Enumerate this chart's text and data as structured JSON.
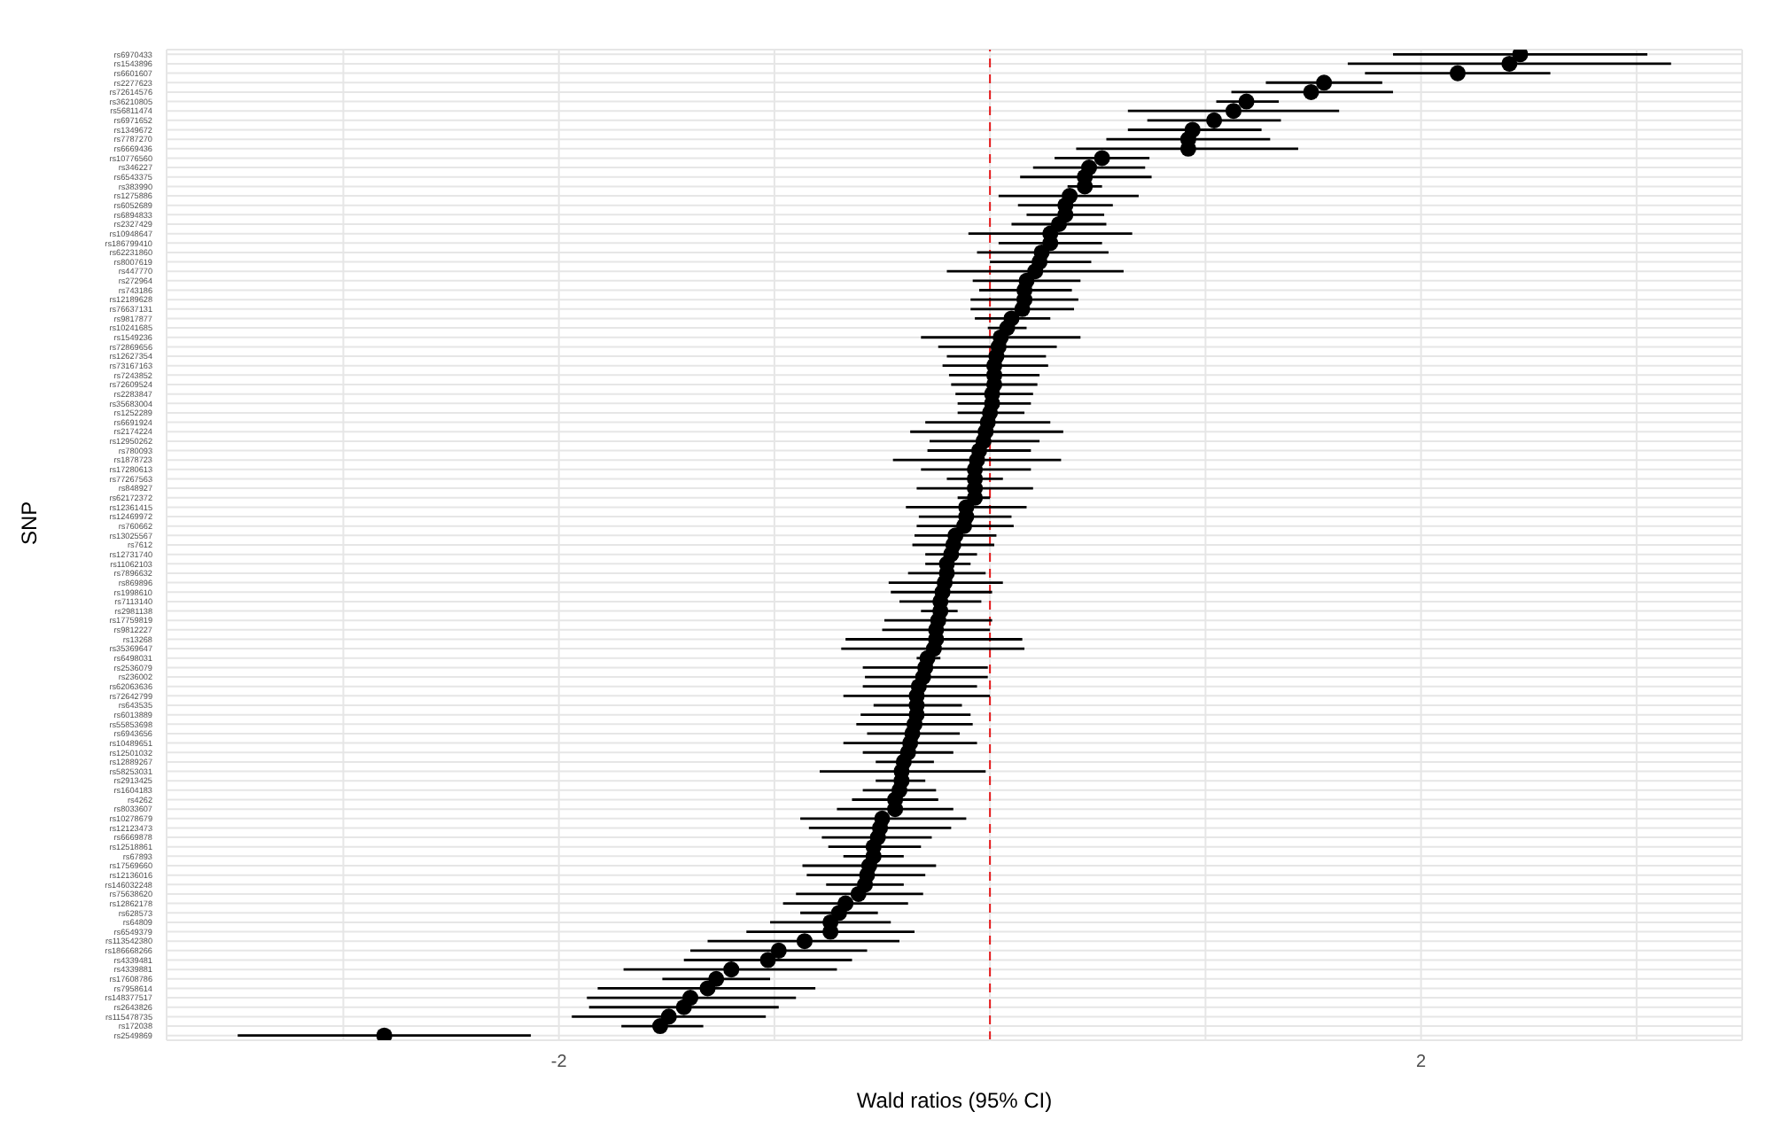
{
  "chart_data": {
    "type": "scatter",
    "orientation": "horizontal",
    "xlabel": "Wald ratios (95% CI)",
    "ylabel": "SNP",
    "grid": true,
    "marker": "circle",
    "legend": false,
    "categories": [
      "rs6970433",
      "rs1543896",
      "rs6601607",
      "rs2277623",
      "rs72614576",
      "rs36210805",
      "rs56811474",
      "rs6971652",
      "rs1349672",
      "rs7787270",
      "rs6669436",
      "rs10776560",
      "rs346227",
      "rs6543375",
      "rs383990",
      "rs1275886",
      "rs6052689",
      "rs6894833",
      "rs2327429",
      "rs10948647",
      "rs186799410",
      "rs62231860",
      "rs8007619",
      "rs447770",
      "rs272964",
      "rs743186",
      "rs12189628",
      "rs76637131",
      "rs9817877",
      "rs10241685",
      "rs1549236",
      "rs72869656",
      "rs12627354",
      "rs73167163",
      "rs7243852",
      "rs72609524",
      "rs2283847",
      "rs35683004",
      "rs1252289",
      "rs6691924",
      "rs2174224",
      "rs12950262",
      "rs780093",
      "rs1878723",
      "rs17280613",
      "rs77267563",
      "rs848927",
      "rs62172372",
      "rs12361415",
      "rs12469972",
      "rs760662",
      "rs13025567",
      "rs7612",
      "rs12731740",
      "rs11062103",
      "rs7896632",
      "rs869896",
      "rs1998610",
      "rs7113140",
      "rs2981138",
      "rs17759819",
      "rs9812227",
      "rs13268",
      "rs35369647",
      "rs6498031",
      "rs2536079",
      "rs236002",
      "rs62063636",
      "rs72642799",
      "rs643535",
      "rs6013889",
      "rs55853698",
      "rs6943656",
      "rs10489651",
      "rs12501032",
      "rs12889267",
      "rs58253031",
      "rs2913425",
      "rs1604183",
      "rs4262",
      "rs8033607",
      "rs10278679",
      "rs12123473",
      "rs6669878",
      "rs12518861",
      "rs67893",
      "rs17569660",
      "rs12136016",
      "rs146032248",
      "rs75638620",
      "rs12862178",
      "rs628573",
      "rs64809",
      "rs6549379",
      "rs113542380",
      "rs186668266",
      "rs4339481",
      "rs4339881",
      "rs17608786",
      "rs7958614",
      "rs148377517",
      "rs2643826",
      "rs115478735",
      "rs172038",
      "rs2549869"
    ],
    "series": [
      {
        "color": "#000000",
        "values": [
          2.46,
          2.41,
          2.17,
          1.55,
          1.49,
          1.19,
          1.13,
          1.04,
          0.94,
          0.92,
          0.92,
          0.52,
          0.46,
          0.44,
          0.44,
          0.37,
          0.35,
          0.35,
          0.32,
          0.28,
          0.28,
          0.24,
          0.23,
          0.21,
          0.17,
          0.16,
          0.16,
          0.15,
          0.1,
          0.08,
          0.05,
          0.04,
          0.03,
          0.02,
          0.02,
          0.02,
          0.01,
          0.01,
          0.0,
          -0.01,
          -0.02,
          -0.03,
          -0.05,
          -0.06,
          -0.07,
          -0.07,
          -0.07,
          -0.07,
          -0.11,
          -0.11,
          -0.12,
          -0.16,
          -0.17,
          -0.18,
          -0.2,
          -0.2,
          -0.21,
          -0.22,
          -0.23,
          -0.23,
          -0.24,
          -0.25,
          -0.25,
          -0.26,
          -0.29,
          -0.3,
          -0.31,
          -0.33,
          -0.34,
          -0.34,
          -0.34,
          -0.35,
          -0.36,
          -0.37,
          -0.38,
          -0.4,
          -0.41,
          -0.41,
          -0.42,
          -0.44,
          -0.44,
          -0.5,
          -0.51,
          -0.52,
          -0.54,
          -0.54,
          -0.56,
          -0.57,
          -0.58,
          -0.61,
          -0.67,
          -0.7,
          -0.74,
          -0.74,
          -0.86,
          -0.98,
          -1.03,
          -1.2,
          -1.27,
          -1.31,
          -1.39,
          -1.42,
          -1.49,
          -1.53,
          -2.81
        ],
        "errors": [
          [
            1.87,
            3.05
          ],
          [
            1.66,
            3.16
          ],
          [
            1.74,
            2.6
          ],
          [
            1.28,
            1.82
          ],
          [
            1.12,
            1.87
          ],
          [
            1.05,
            1.34
          ],
          [
            0.64,
            1.62
          ],
          [
            0.73,
            1.35
          ],
          [
            0.64,
            1.26
          ],
          [
            0.54,
            1.3
          ],
          [
            0.4,
            1.43
          ],
          [
            0.3,
            0.74
          ],
          [
            0.2,
            0.72
          ],
          [
            0.14,
            0.75
          ],
          [
            0.36,
            0.52
          ],
          [
            0.04,
            0.69
          ],
          [
            0.13,
            0.57
          ],
          [
            0.17,
            0.53
          ],
          [
            0.1,
            0.54
          ],
          [
            -0.1,
            0.66
          ],
          [
            0.04,
            0.52
          ],
          [
            -0.06,
            0.55
          ],
          [
            0.0,
            0.47
          ],
          [
            -0.2,
            0.62
          ],
          [
            -0.08,
            0.42
          ],
          [
            -0.05,
            0.38
          ],
          [
            -0.09,
            0.41
          ],
          [
            -0.09,
            0.39
          ],
          [
            -0.07,
            0.28
          ],
          [
            -0.01,
            0.17
          ],
          [
            -0.32,
            0.42
          ],
          [
            -0.24,
            0.31
          ],
          [
            -0.2,
            0.26
          ],
          [
            -0.22,
            0.27
          ],
          [
            -0.19,
            0.23
          ],
          [
            -0.18,
            0.22
          ],
          [
            -0.16,
            0.2
          ],
          [
            -0.15,
            0.19
          ],
          [
            -0.15,
            0.16
          ],
          [
            -0.3,
            0.28
          ],
          [
            -0.37,
            0.34
          ],
          [
            -0.28,
            0.23
          ],
          [
            -0.29,
            0.19
          ],
          [
            -0.45,
            0.33
          ],
          [
            -0.32,
            0.19
          ],
          [
            -0.2,
            0.06
          ],
          [
            -0.34,
            0.2
          ],
          [
            -0.15,
            0.0
          ],
          [
            -0.39,
            0.17
          ],
          [
            -0.33,
            0.1
          ],
          [
            -0.34,
            0.11
          ],
          [
            -0.35,
            0.03
          ],
          [
            -0.36,
            0.02
          ],
          [
            -0.3,
            -0.06
          ],
          [
            -0.3,
            -0.09
          ],
          [
            -0.38,
            -0.02
          ],
          [
            -0.47,
            0.06
          ],
          [
            -0.46,
            0.01
          ],
          [
            -0.42,
            -0.04
          ],
          [
            -0.32,
            -0.15
          ],
          [
            -0.49,
            0.01
          ],
          [
            -0.5,
            0.0
          ],
          [
            -0.67,
            0.15
          ],
          [
            -0.69,
            0.16
          ],
          [
            -0.34,
            -0.23
          ],
          [
            -0.59,
            -0.01
          ],
          [
            -0.58,
            -0.01
          ],
          [
            -0.59,
            -0.06
          ],
          [
            -0.68,
            0.0
          ],
          [
            -0.54,
            -0.13
          ],
          [
            -0.6,
            -0.09
          ],
          [
            -0.62,
            -0.08
          ],
          [
            -0.57,
            -0.14
          ],
          [
            -0.68,
            -0.06
          ],
          [
            -0.59,
            -0.17
          ],
          [
            -0.53,
            -0.26
          ],
          [
            -0.79,
            -0.02
          ],
          [
            -0.53,
            -0.3
          ],
          [
            -0.59,
            -0.25
          ],
          [
            -0.64,
            -0.24
          ],
          [
            -0.71,
            -0.17
          ],
          [
            -0.88,
            -0.11
          ],
          [
            -0.84,
            -0.18
          ],
          [
            -0.78,
            -0.27
          ],
          [
            -0.75,
            -0.32
          ],
          [
            -0.68,
            -0.4
          ],
          [
            -0.87,
            -0.25
          ],
          [
            -0.85,
            -0.3
          ],
          [
            -0.76,
            -0.4
          ],
          [
            -0.9,
            -0.31
          ],
          [
            -0.96,
            -0.38
          ],
          [
            -0.88,
            -0.52
          ],
          [
            -1.02,
            -0.46
          ],
          [
            -1.13,
            -0.35
          ],
          [
            -1.31,
            -0.42
          ],
          [
            -1.39,
            -0.57
          ],
          [
            -1.42,
            -0.64
          ],
          [
            -1.7,
            -0.71
          ],
          [
            -1.52,
            -1.02
          ],
          [
            -1.82,
            -0.81
          ],
          [
            -1.87,
            -0.9
          ],
          [
            -1.86,
            -0.98
          ],
          [
            -1.94,
            -1.04
          ],
          [
            -1.71,
            -1.33
          ],
          [
            -3.49,
            -2.13
          ]
        ]
      }
    ],
    "xlim": [
      -3.82,
      3.49
    ],
    "xticks": [
      {
        "value": -3,
        "label": null
      },
      -2,
      {
        "value": -1,
        "label": null
      },
      {
        "value": 0,
        "label": null
      },
      {
        "value": 1,
        "label": null
      },
      2,
      {
        "value": 3,
        "label": null
      }
    ],
    "ref_lines": [
      {
        "axis": "x",
        "value": 0,
        "color": "#e41a1c",
        "line_style": "dashed"
      }
    ]
  }
}
